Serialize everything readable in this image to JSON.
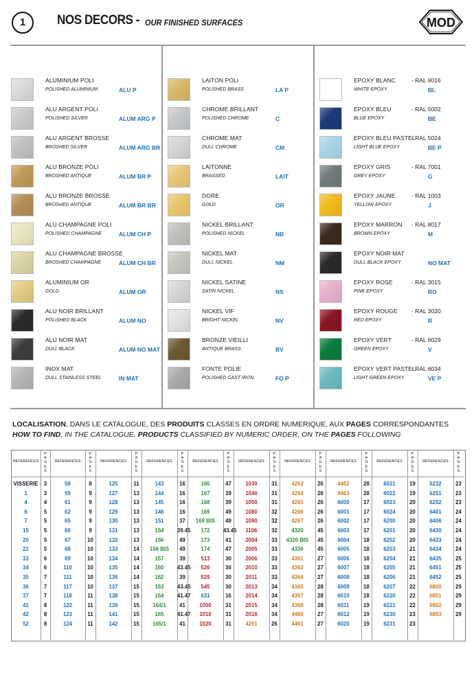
{
  "header": {
    "page_number": "1",
    "title": "NOS DECORS -",
    "subtitle": "OUR FINISHED SURFACES",
    "logo_text": "MOD"
  },
  "colors": {
    "code_blue": "#1e6fb6",
    "ref_red": "#b3262c",
    "ref_green": "#2e8a3a",
    "ref_orange": "#d07a1e"
  },
  "finishes": {
    "col1": [
      {
        "name": "ALUMINIUM POLI",
        "name_en": "POLISHED ALUMINIUM",
        "code": "ALU P",
        "color": "#d9dadb"
      },
      {
        "name": "ALU ARGENT POLI",
        "name_en": "POLISHED SILVER",
        "code": "ALUM ARG P",
        "color": "#c9cbcd"
      },
      {
        "name": "ALU ARGENT BROSSE",
        "name_en": "BROSHED SILVER",
        "code": "ALUM ARG BR",
        "color": "#bfc1c2"
      },
      {
        "name": "ALU BRONZE POLI",
        "name_en": "BROSHED ANTIQUE",
        "code": "ALUM BR P",
        "color": "#c19a5a"
      },
      {
        "name": "ALU BRONZE BROSSE",
        "name_en": "BROSHED ANTIQUE",
        "code": "ALUM BR BR",
        "color": "#b58c55"
      },
      {
        "name": "ALU CHAMPAGNE POLI",
        "name_en": "POLISHED CHAMPAGNE",
        "code": "ALUM CH P",
        "color": "#e9e6bf"
      },
      {
        "name": "ALU CHAMPAGNE BROSSE",
        "name_en": "BROSHED CHAMPAGNE",
        "code": "ALUM CH BR",
        "color": "#dcd4a2"
      },
      {
        "name": "ALUMINIUM OR",
        "name_en": "GOLD",
        "code": "ALUM OR",
        "color": "#e2cd86"
      },
      {
        "name": "ALU NOIR BRILLANT",
        "name_en": "POLISHED BLACK",
        "code": "ALUM NO",
        "color": "#2b2b2b"
      },
      {
        "name": "ALU NOIR MAT",
        "name_en": "DULL BLACK",
        "code": "ALUM NO MAT",
        "color": "#3d3d3d"
      },
      {
        "name": "INOX MAT",
        "name_en": "DULL STAINLESS STEEL",
        "code": "IN MAT",
        "color": "#b5b6b7"
      }
    ],
    "col2": [
      {
        "name": "LAITON POLI",
        "name_en": "POLISHED BRASS",
        "code": "LA P",
        "color": "#d9b969"
      },
      {
        "name": "CHROME BRILLANT",
        "name_en": "POLISHED CHROME",
        "code": "C",
        "color": "#c6c9cb"
      },
      {
        "name": "CHROME MAT",
        "name_en": "DULL CHROME",
        "code": "CM",
        "color": "#d3d5d6"
      },
      {
        "name": "LAITONNE",
        "name_en": "BRASSED",
        "code": "LAIT",
        "color": "#e8c779"
      },
      {
        "name": "DORE",
        "name_en": "GOLD",
        "code": "OR",
        "color": "#e9c76e"
      },
      {
        "name": "NICKEL BRILLANT",
        "name_en": "POLISHED NICKEL",
        "code": "NB",
        "color": "#c0c1bd"
      },
      {
        "name": "NICKEL MAT",
        "name_en": "DULL NICKEL",
        "code": "NM",
        "color": "#c8c6c0"
      },
      {
        "name": "NICKEL SATINE",
        "name_en": "SATIN NICKEL",
        "code": "NS",
        "color": "#d6d7d4"
      },
      {
        "name": "NICKEL VIF",
        "name_en": "BRIGHT NICKEL",
        "code": "NV",
        "color": "#e3e3e2"
      },
      {
        "name": "BRONZE VIEILLI",
        "name_en": "ANTIQUE BRASS",
        "code": "BV",
        "color": "#6e5a35"
      },
      {
        "name": "FONTE POLIE",
        "name_en": "POLISHED CAST IRON",
        "code": "FO P",
        "color": "#a9aaab"
      }
    ],
    "col3": [
      {
        "name": "EPOXY BLANC",
        "ral": "- RAL 9016",
        "name_en": "WHITE EPOXY",
        "code": "BL",
        "color": "#ffffff"
      },
      {
        "name": "EPOXY BLEU",
        "ral": "- RAL 5002",
        "name_en": "BLUE EPOXY",
        "code": "BE",
        "color": "#1c3a7a"
      },
      {
        "name": "EPOXY BLEU PASTEL",
        "ral": "- RAL 5024",
        "name_en": "LIGHT BLUE EPOXY",
        "code": "BE P",
        "color": "#a9d6e8"
      },
      {
        "name": "EPOXY GRIS",
        "ral": "- RAL 7001",
        "name_en": "GREY EPOXY",
        "code": "G",
        "color": "#737a7d"
      },
      {
        "name": "EPOXY JAUNE",
        "ral": "- RAL 1003",
        "name_en": "YELLOW EPOXY",
        "code": "J",
        "color": "#f2bb1d"
      },
      {
        "name": "EPOXY MARRON",
        "ral": "- RAL 8017",
        "name_en": "BROWN EPOXY",
        "code": "M",
        "color": "#3a2a1e"
      },
      {
        "name": "EPOXY NOIR MAT",
        "ral": "",
        "name_en": "DULL BLACK EPOXY",
        "code": "NO MAT",
        "color": "#2a2a2a"
      },
      {
        "name": "EPOXY ROSE",
        "ral": "- RAL 3015",
        "name_en": "PINK EPOXY",
        "code": "RO",
        "color": "#e9b0cc"
      },
      {
        "name": "EPOXY ROUGE",
        "ral": "- RAL 3020",
        "name_en": "RED EPOXY",
        "code": "R",
        "color": "#8a1623"
      },
      {
        "name": "EPOXY VERT",
        "ral": "- RAL 6029",
        "name_en": "GREEN EPOXY",
        "code": "V",
        "color": "#0c7c3d"
      },
      {
        "name": "EPOXY VERT PASTEL",
        "ral": "- RAL 6034",
        "name_en": "LIGHT GREEN EPOXY",
        "code": "VE P",
        "color": "#6bbcc2"
      }
    ]
  },
  "localisation": {
    "l1_a": "LOCALISATION",
    "l1_b": ", DANS LE CATALOGUE, DES ",
    "l1_c": "PRODUITS",
    "l1_d": " CLASSES EN ORDRE NUMERIQUE, AUX ",
    "l1_e": "PAGES",
    "l1_f": " CORRESPONDANTES",
    "l2_a": "HOW TO FIND",
    "l2_b": ", IN THE CATALOGUE, ",
    "l2_c": "PRODUCTS",
    "l2_d": " CLASSIFIED BY NUMERIC ORDER, ON THE ",
    "l2_e": "PAGES",
    "l2_f": " FOLLOWING"
  },
  "table": {
    "ref_header": "REFERENCES",
    "pages_header": "P A G E S",
    "pairs": [
      {
        "refs": [
          "VISSERIE",
          "1",
          "4",
          "6",
          "7",
          "15",
          "20",
          "22",
          "33",
          "34",
          "35",
          "36",
          "37",
          "41",
          "42",
          "52"
        ],
        "pages": [
          "3",
          "3",
          "4",
          "5",
          "5",
          "5",
          "5",
          "5",
          "6",
          "6",
          "7",
          "7",
          "7",
          "8",
          "8",
          "8"
        ]
      },
      {
        "refs": [
          "58",
          "59",
          "61",
          "62",
          "65",
          "66",
          "67",
          "68",
          "69",
          "110",
          "111",
          "117",
          "118",
          "122",
          "123",
          "124"
        ],
        "pages": [
          "8",
          "9",
          "9",
          "9",
          "9",
          "9",
          "10",
          "10",
          "10",
          "10",
          "10",
          "10",
          "11",
          "11",
          "11",
          "11"
        ]
      },
      {
        "refs": [
          "125",
          "127",
          "128",
          "129",
          "130",
          "131",
          "132",
          "133",
          "134",
          "135",
          "136",
          "137",
          "138",
          "139",
          "141",
          "142"
        ],
        "pages": [
          "11",
          "13",
          "13",
          "13",
          "13",
          "13",
          "13",
          "14",
          "14",
          "14",
          "14",
          "15",
          "15",
          "15",
          "15",
          "15"
        ]
      },
      {
        "refs": [
          "143",
          "144",
          "145",
          "146",
          "151",
          "154",
          "156",
          "156 BIS",
          "157",
          "160",
          "162",
          "163",
          "164",
          "164/1",
          "165",
          "165/1"
        ],
        "pages": [
          "16",
          "16",
          "16",
          "16",
          "37",
          "39.45",
          "49",
          "49",
          "39",
          "43.45",
          "39",
          "43.45",
          "41.47",
          "41",
          "41.47",
          "41"
        ]
      },
      {
        "refs": [
          "166",
          "167",
          "168",
          "169",
          "169 BIS",
          "172",
          "173",
          "174",
          "513",
          "526",
          "529",
          "545",
          "631",
          "1000",
          "1010",
          "1020"
        ],
        "pages": [
          "47",
          "39",
          "39",
          "49",
          "49",
          "43.45",
          "41",
          "47",
          "30",
          "30",
          "30",
          "30",
          "16",
          "31",
          "31",
          "31"
        ]
      },
      {
        "refs": [
          "1030",
          "1040",
          "1050",
          "1080",
          "1090",
          "1106",
          "2004",
          "2005",
          "2006",
          "2010",
          "2011",
          "2013",
          "2014",
          "2015",
          "2016",
          "4261"
        ],
        "pages": [
          "31",
          "31",
          "31",
          "32",
          "32",
          "32",
          "33",
          "33",
          "33",
          "33",
          "33",
          "34",
          "34",
          "34",
          "34",
          "26"
        ]
      },
      {
        "refs": [
          "4262",
          "4264",
          "4265",
          "4266",
          "4267",
          "4320",
          "4320 BIS",
          "4330",
          "4361",
          "4362",
          "4364",
          "4365",
          "4367",
          "4368",
          "4460",
          "4461"
        ],
        "pages": [
          "26",
          "26",
          "26",
          "26",
          "26",
          "45",
          "45",
          "45",
          "27",
          "27",
          "27",
          "28",
          "28",
          "28",
          "27",
          "27"
        ]
      },
      {
        "refs": [
          "4462",
          "4463",
          "6000",
          "6001",
          "6002",
          "6003",
          "6004",
          "6005",
          "6006",
          "6007",
          "6008",
          "6009",
          "6010",
          "6011",
          "6012",
          "6020"
        ],
        "pages": [
          "28",
          "28",
          "17",
          "17",
          "17",
          "17",
          "18",
          "18",
          "18",
          "18",
          "18",
          "18",
          "18",
          "19",
          "19",
          "19"
        ]
      },
      {
        "refs": [
          "6021",
          "6022",
          "6023",
          "6024",
          "6200",
          "6201",
          "6202",
          "6203",
          "6204",
          "6205",
          "6206",
          "6207",
          "6220",
          "6221",
          "6230",
          "6231"
        ],
        "pages": [
          "19",
          "19",
          "20",
          "20",
          "20",
          "20",
          "20",
          "21",
          "21",
          "21",
          "21",
          "22",
          "22",
          "22",
          "23",
          "23"
        ]
      },
      {
        "refs": [
          "6232",
          "6251",
          "6252",
          "6401",
          "6406",
          "6430",
          "6433",
          "6434",
          "6435",
          "6451",
          "6452",
          "6800",
          "6801",
          "6802",
          "6803",
          ""
        ],
        "pages": [
          "23",
          "23",
          "23",
          "24",
          "24",
          "24",
          "24",
          "24",
          "25",
          "25",
          "25",
          "29",
          "29",
          "29",
          "29",
          ""
        ]
      }
    ]
  }
}
